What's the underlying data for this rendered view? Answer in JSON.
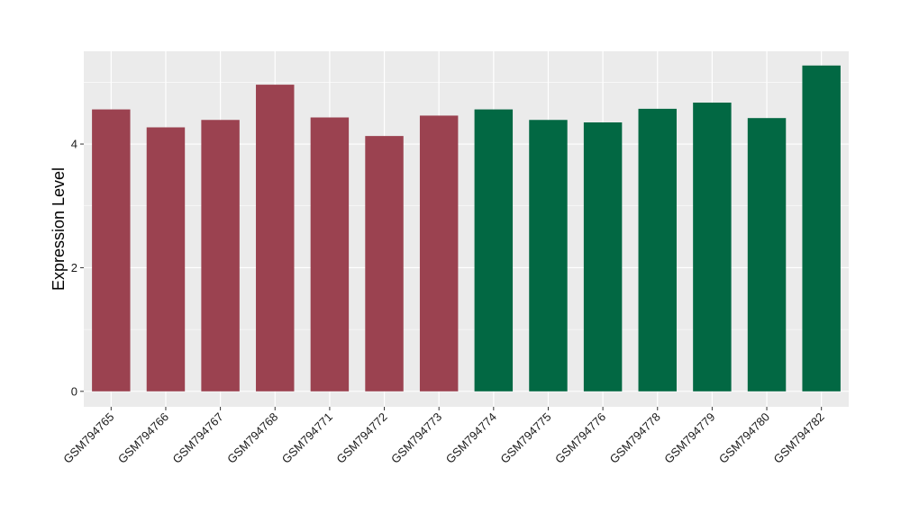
{
  "chart_data": {
    "type": "bar",
    "title": "",
    "xlabel": "",
    "ylabel": "Expression Level",
    "ylim": [
      -0.25,
      5.5
    ],
    "yticks": [
      0,
      2,
      4
    ],
    "grid": true,
    "categories": [
      "GSM794765",
      "GSM794766",
      "GSM794767",
      "GSM794768",
      "GSM794771",
      "GSM794772",
      "GSM794773",
      "GSM794774",
      "GSM794775",
      "GSM794776",
      "GSM794778",
      "GSM794779",
      "GSM794780",
      "GSM794782"
    ],
    "values": [
      4.56,
      4.27,
      4.39,
      4.96,
      4.43,
      4.13,
      4.46,
      4.56,
      4.39,
      4.35,
      4.57,
      4.67,
      4.42,
      5.27
    ],
    "bar_colors": [
      "#9b4250",
      "#9b4250",
      "#9b4250",
      "#9b4250",
      "#9b4250",
      "#9b4250",
      "#9b4250",
      "#026843",
      "#026843",
      "#026843",
      "#026843",
      "#026843",
      "#026843",
      "#026843"
    ],
    "panel_background": "#ebebeb",
    "grid_color": "#ffffff"
  }
}
